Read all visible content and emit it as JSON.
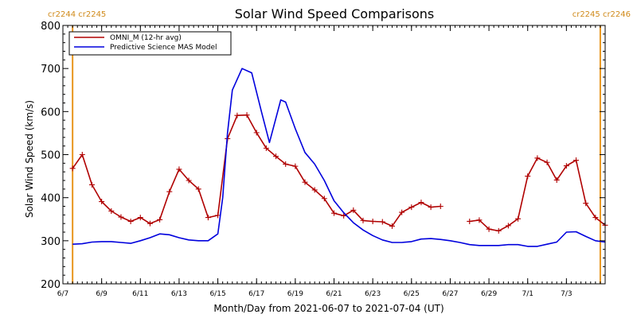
{
  "colors": {
    "omni": "#b00000",
    "mas": "#0000dd",
    "carrington": "#e8961e",
    "axis": "#000000"
  },
  "chart_data": {
    "type": "line",
    "title": "Solar Wind Speed Comparisons",
    "xlabel": "Month/Day from 2021-06-07 to 2021-07-04 (UT)",
    "ylabel": "Solar Wind Speed (km/s)",
    "xlim": [
      "2021-06-07",
      "2021-07-04"
    ],
    "ylim": [
      200,
      800
    ],
    "y_ticks": [
      200,
      300,
      400,
      500,
      600,
      700,
      800
    ],
    "x_ticks": [
      {
        "date": "2021-06-07",
        "label": "6/7"
      },
      {
        "date": "2021-06-09",
        "label": "6/9"
      },
      {
        "date": "2021-06-11",
        "label": "6/11"
      },
      {
        "date": "2021-06-13",
        "label": "6/13"
      },
      {
        "date": "2021-06-15",
        "label": "6/15"
      },
      {
        "date": "2021-06-17",
        "label": "6/17"
      },
      {
        "date": "2021-06-19",
        "label": "6/19"
      },
      {
        "date": "2021-06-21",
        "label": "6/21"
      },
      {
        "date": "2021-06-23",
        "label": "6/23"
      },
      {
        "date": "2021-06-25",
        "label": "6/25"
      },
      {
        "date": "2021-06-27",
        "label": "6/27"
      },
      {
        "date": "2021-06-29",
        "label": "6/29"
      },
      {
        "date": "2021-07-01",
        "label": "7/1"
      },
      {
        "date": "2021-07-03",
        "label": "7/3"
      }
    ],
    "carrington": {
      "left_label": "cr2244 cr2245",
      "right_label": "cr2245 cr2246",
      "left_date": "2021-06-07 12:00",
      "right_date": "2021-07-04 18:00"
    },
    "legend": {
      "position": "top-left"
    },
    "series": [
      {
        "name": "OMNI_M (12-hr avg)",
        "points": [
          [
            "2021-06-07 12:00",
            468
          ],
          [
            "2021-06-08 00:00",
            500
          ],
          [
            "2021-06-08 12:00",
            430
          ],
          [
            "2021-06-09 00:00",
            391
          ],
          [
            "2021-06-09 12:00",
            369
          ],
          [
            "2021-06-10 00:00",
            355
          ],
          [
            "2021-06-10 12:00",
            345
          ],
          [
            "2021-06-11 00:00",
            354
          ],
          [
            "2021-06-11 12:00",
            340
          ],
          [
            "2021-06-12 00:00",
            349
          ],
          [
            "2021-06-12 12:00",
            414
          ],
          [
            "2021-06-13 00:00",
            466
          ],
          [
            "2021-06-13 12:00",
            440
          ],
          [
            "2021-06-14 00:00",
            420
          ],
          [
            "2021-06-14 12:00",
            354
          ],
          [
            "2021-06-15 00:00",
            359
          ],
          [
            "2021-06-15 12:00",
            537
          ],
          [
            "2021-06-16 00:00",
            591
          ],
          [
            "2021-06-16 12:00",
            592
          ],
          [
            "2021-06-17 00:00",
            551
          ],
          [
            "2021-06-17 12:00",
            515
          ],
          [
            "2021-06-18 00:00",
            496
          ],
          [
            "2021-06-18 12:00",
            478
          ],
          [
            "2021-06-19 00:00",
            473
          ],
          [
            "2021-06-19 12:00",
            436
          ],
          [
            "2021-06-20 00:00",
            418
          ],
          [
            "2021-06-20 12:00",
            398
          ],
          [
            "2021-06-21 00:00",
            364
          ],
          [
            "2021-06-21 12:00",
            358
          ],
          [
            "2021-06-22 00:00",
            371
          ],
          [
            "2021-06-22 12:00",
            347
          ],
          [
            "2021-06-23 00:00",
            345
          ],
          [
            "2021-06-23 12:00",
            344
          ],
          [
            "2021-06-24 00:00",
            334
          ],
          [
            "2021-06-24 12:00",
            366
          ],
          [
            "2021-06-25 00:00",
            378
          ],
          [
            "2021-06-25 12:00",
            389
          ],
          [
            "2021-06-26 00:00",
            378
          ],
          [
            "2021-06-26 12:00",
            380
          ],
          null,
          [
            "2021-06-28 00:00",
            345
          ],
          [
            "2021-06-28 12:00",
            348
          ],
          [
            "2021-06-29 00:00",
            327
          ],
          [
            "2021-06-29 12:00",
            323
          ],
          [
            "2021-06-30 00:00",
            335
          ],
          [
            "2021-06-30 12:00",
            351
          ],
          [
            "2021-07-01 00:00",
            450
          ],
          [
            "2021-07-01 12:00",
            492
          ],
          [
            "2021-07-02 00:00",
            482
          ],
          [
            "2021-07-02 12:00",
            441
          ],
          [
            "2021-07-03 00:00",
            474
          ],
          [
            "2021-07-03 12:00",
            487
          ],
          [
            "2021-07-04 00:00",
            387
          ],
          [
            "2021-07-04 12:00",
            354
          ],
          [
            "2021-07-05 00:00",
            336
          ]
        ]
      },
      {
        "name": "Predictive Science MAS Model",
        "points": [
          [
            "2021-06-07 12:00",
            292
          ],
          [
            "2021-06-08 00:00",
            293
          ],
          [
            "2021-06-08 12:00",
            297
          ],
          [
            "2021-06-09 00:00",
            298
          ],
          [
            "2021-06-09 12:00",
            298
          ],
          [
            "2021-06-10 00:00",
            296
          ],
          [
            "2021-06-10 12:00",
            294
          ],
          [
            "2021-06-11 00:00",
            300
          ],
          [
            "2021-06-11 12:00",
            307
          ],
          [
            "2021-06-12 00:00",
            316
          ],
          [
            "2021-06-12 12:00",
            314
          ],
          [
            "2021-06-13 00:00",
            307
          ],
          [
            "2021-06-13 12:00",
            302
          ],
          [
            "2021-06-14 00:00",
            300
          ],
          [
            "2021-06-14 12:00",
            300
          ],
          [
            "2021-06-15 00:00",
            316
          ],
          [
            "2021-06-15 06:00",
            400
          ],
          [
            "2021-06-15 12:00",
            550
          ],
          [
            "2021-06-15 18:00",
            650
          ],
          [
            "2021-06-16 06:00",
            700
          ],
          [
            "2021-06-16 18:00",
            690
          ],
          [
            "2021-06-17 06:00",
            600
          ],
          [
            "2021-06-17 16:00",
            528
          ],
          [
            "2021-06-18 06:00",
            627
          ],
          [
            "2021-06-18 12:00",
            622
          ],
          [
            "2021-06-19 00:00",
            560
          ],
          [
            "2021-06-19 12:00",
            505
          ],
          [
            "2021-06-20 00:00",
            478
          ],
          [
            "2021-06-20 12:00",
            440
          ],
          [
            "2021-06-21 00:00",
            393
          ],
          [
            "2021-06-21 12:00",
            365
          ],
          [
            "2021-06-22 00:00",
            342
          ],
          [
            "2021-06-22 12:00",
            325
          ],
          [
            "2021-06-23 00:00",
            312
          ],
          [
            "2021-06-23 12:00",
            302
          ],
          [
            "2021-06-24 00:00",
            296
          ],
          [
            "2021-06-24 12:00",
            296
          ],
          [
            "2021-06-25 00:00",
            298
          ],
          [
            "2021-06-25 12:00",
            304
          ],
          [
            "2021-06-26 00:00",
            305
          ],
          [
            "2021-06-26 12:00",
            303
          ],
          [
            "2021-06-27 00:00",
            300
          ],
          [
            "2021-06-27 12:00",
            296
          ],
          [
            "2021-06-28 00:00",
            291
          ],
          [
            "2021-06-28 12:00",
            289
          ],
          [
            "2021-06-29 00:00",
            289
          ],
          [
            "2021-06-29 12:00",
            289
          ],
          [
            "2021-06-30 00:00",
            291
          ],
          [
            "2021-06-30 12:00",
            291
          ],
          [
            "2021-07-01 00:00",
            287
          ],
          [
            "2021-07-01 12:00",
            287
          ],
          [
            "2021-07-02 00:00",
            292
          ],
          [
            "2021-07-02 12:00",
            297
          ],
          [
            "2021-07-03 00:00",
            320
          ],
          [
            "2021-07-03 12:00",
            321
          ],
          [
            "2021-07-04 00:00",
            310
          ],
          [
            "2021-07-04 12:00",
            300
          ],
          [
            "2021-07-05 00:00",
            297
          ]
        ]
      }
    ]
  }
}
